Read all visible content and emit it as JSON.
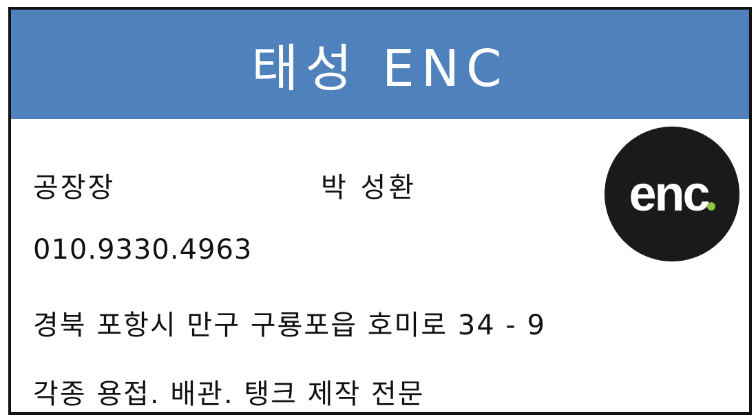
{
  "header": {
    "company_name": "태성 ENC"
  },
  "card": {
    "job_title": "공장장",
    "person_name": "박 성환",
    "phone": "010.9330.4963",
    "address": "경북 포항시 만구 구룡포읍 호미로 34 - 9",
    "services": "각종 용접. 배관. 탱크 제작 전문"
  },
  "logo": {
    "text": "enc",
    "accent_color": "#8dc63f",
    "background_color": "#1a1a1a"
  },
  "colors": {
    "header_background": "#4f81bd",
    "header_text": "#ffffff",
    "body_text": "#111111"
  }
}
